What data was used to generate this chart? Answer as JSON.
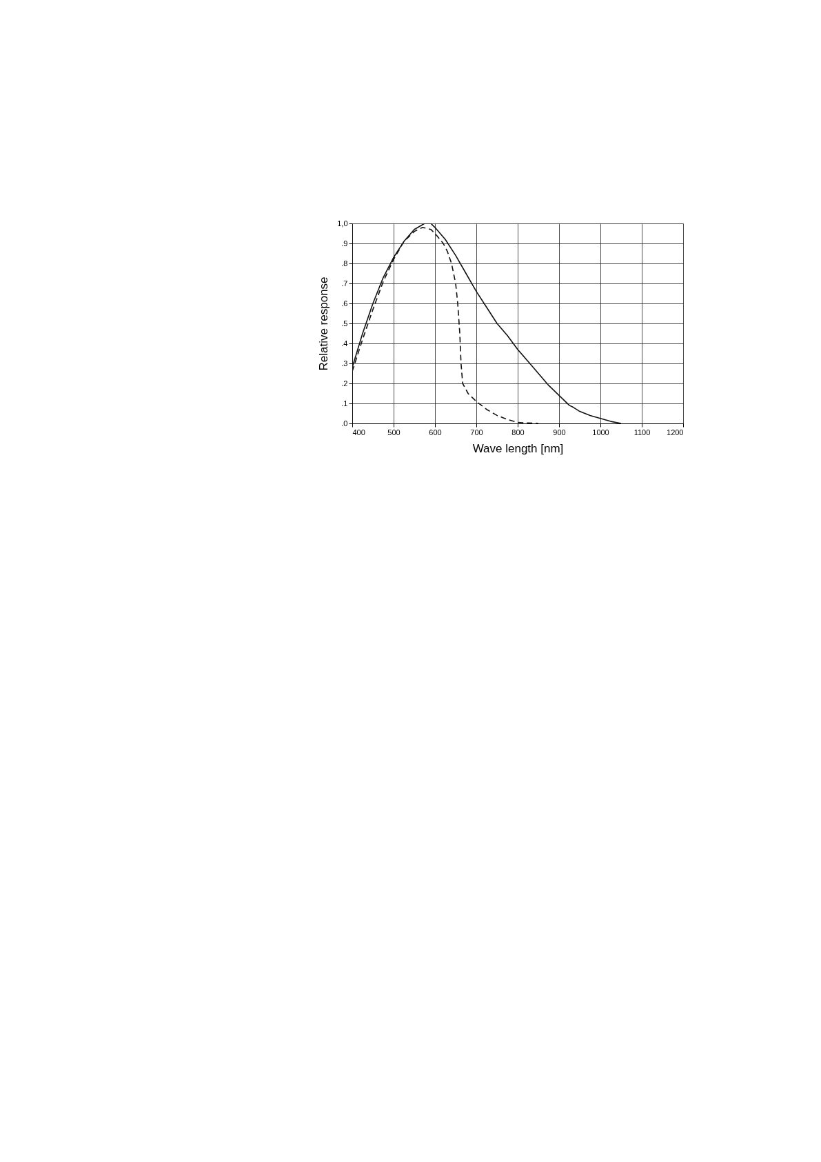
{
  "chart_data": {
    "type": "line",
    "xlabel": "Wave length [nm]",
    "ylabel": "Relative response",
    "xlim": [
      400,
      1200
    ],
    "xticks": [
      400,
      500,
      600,
      700,
      800,
      900,
      1000,
      1100,
      1200
    ],
    "ylim": [
      0,
      1
    ],
    "yticks": [
      {
        "value": 0,
        "label": ".0"
      },
      {
        "value": 0.1,
        "label": ".1"
      },
      {
        "value": 0.2,
        "label": ".2"
      },
      {
        "value": 0.3,
        "label": ".3"
      },
      {
        "value": 0.4,
        "label": ".4"
      },
      {
        "value": 0.5,
        "label": ".5"
      },
      {
        "value": 0.6,
        "label": ".6"
      },
      {
        "value": 0.7,
        "label": ".7"
      },
      {
        "value": 0.8,
        "label": ".8"
      },
      {
        "value": 0.9,
        "label": ".9"
      },
      {
        "value": 1.0,
        "label": "1,0"
      }
    ],
    "grid": true,
    "marker": "none",
    "series": [
      {
        "color": "#111111",
        "line_style": "solid",
        "x": [
          400,
          425,
          450,
          475,
          500,
          525,
          550,
          575,
          590,
          600,
          625,
          650,
          675,
          700,
          725,
          750,
          775,
          800,
          825,
          850,
          875,
          900,
          925,
          935,
          950,
          975,
          1000,
          1025,
          1050
        ],
        "values": [
          0.28,
          0.45,
          0.6,
          0.73,
          0.83,
          0.91,
          0.97,
          1.0,
          1.0,
          0.98,
          0.92,
          0.84,
          0.75,
          0.66,
          0.58,
          0.5,
          0.44,
          0.37,
          0.31,
          0.25,
          0.19,
          0.14,
          0.09,
          0.08,
          0.06,
          0.04,
          0.025,
          0.01,
          0.0
        ]
      },
      {
        "color": "#111111",
        "line_style": "dashed",
        "x": [
          400,
          425,
          450,
          475,
          500,
          525,
          550,
          570,
          590,
          600,
          620,
          630,
          640,
          650,
          655,
          660,
          663,
          667,
          680,
          700,
          725,
          750,
          775,
          800,
          850
        ],
        "values": [
          0.26,
          0.42,
          0.57,
          0.71,
          0.82,
          0.91,
          0.96,
          0.98,
          0.97,
          0.95,
          0.9,
          0.86,
          0.8,
          0.7,
          0.6,
          0.45,
          0.3,
          0.2,
          0.15,
          0.11,
          0.07,
          0.04,
          0.02,
          0.005,
          0.0
        ]
      }
    ]
  }
}
